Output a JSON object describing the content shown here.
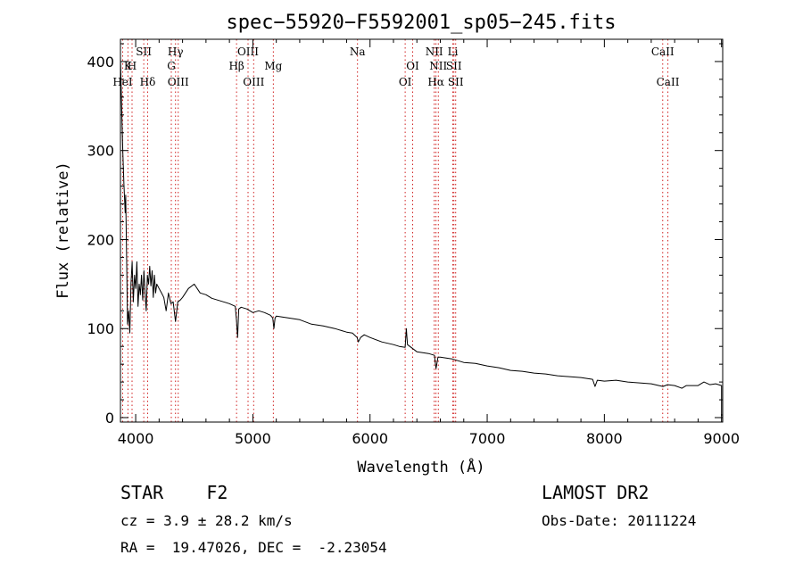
{
  "chart_data": {
    "type": "line",
    "title": "spec−55920−F5592001_sp05−245.fits",
    "xlabel": "Wavelength (Å)",
    "ylabel": "Flux (relative)",
    "xlim": [
      3870,
      9010
    ],
    "ylim": [
      -5,
      425
    ],
    "xticks": [
      4000,
      5000,
      6000,
      7000,
      8000,
      9000
    ],
    "yticks": [
      0,
      100,
      200,
      300,
      400
    ],
    "grid": false,
    "series": [
      {
        "color": "#000000",
        "points": [
          [
            3870,
            405
          ],
          [
            3880,
            350
          ],
          [
            3890,
            300
          ],
          [
            3900,
            262
          ],
          [
            3910,
            230
          ],
          [
            3915,
            250
          ],
          [
            3920,
            200
          ],
          [
            3925,
            160
          ],
          [
            3930,
            105
          ],
          [
            3940,
            120
          ],
          [
            3950,
            95
          ],
          [
            3960,
            150
          ],
          [
            3970,
            175
          ],
          [
            3980,
            130
          ],
          [
            3990,
            160
          ],
          [
            4000,
            145
          ],
          [
            4010,
            175
          ],
          [
            4020,
            125
          ],
          [
            4030,
            150
          ],
          [
            4040,
            138
          ],
          [
            4050,
            160
          ],
          [
            4060,
            132
          ],
          [
            4070,
            165
          ],
          [
            4080,
            140
          ],
          [
            4090,
            120
          ],
          [
            4100,
            160
          ],
          [
            4110,
            150
          ],
          [
            4120,
            170
          ],
          [
            4130,
            148
          ],
          [
            4140,
            165
          ],
          [
            4150,
            135
          ],
          [
            4160,
            160
          ],
          [
            4170,
            140
          ],
          [
            4180,
            150
          ],
          [
            4200,
            145
          ],
          [
            4220,
            140
          ],
          [
            4240,
            135
          ],
          [
            4260,
            120
          ],
          [
            4280,
            140
          ],
          [
            4300,
            128
          ],
          [
            4320,
            130
          ],
          [
            4340,
            108
          ],
          [
            4360,
            130
          ],
          [
            4380,
            132
          ],
          [
            4400,
            135
          ],
          [
            4450,
            145
          ],
          [
            4500,
            150
          ],
          [
            4550,
            140
          ],
          [
            4600,
            138
          ],
          [
            4650,
            134
          ],
          [
            4700,
            132
          ],
          [
            4750,
            130
          ],
          [
            4800,
            128
          ],
          [
            4850,
            125
          ],
          [
            4860,
            110
          ],
          [
            4870,
            90
          ],
          [
            4880,
            122
          ],
          [
            4900,
            124
          ],
          [
            4950,
            122
          ],
          [
            5000,
            118
          ],
          [
            5050,
            120
          ],
          [
            5100,
            118
          ],
          [
            5150,
            115
          ],
          [
            5170,
            112
          ],
          [
            5180,
            100
          ],
          [
            5190,
            112
          ],
          [
            5200,
            114
          ],
          [
            5300,
            112
          ],
          [
            5400,
            110
          ],
          [
            5500,
            105
          ],
          [
            5600,
            103
          ],
          [
            5700,
            100
          ],
          [
            5800,
            96
          ],
          [
            5850,
            95
          ],
          [
            5890,
            90
          ],
          [
            5900,
            85
          ],
          [
            5920,
            90
          ],
          [
            5950,
            93
          ],
          [
            6000,
            90
          ],
          [
            6100,
            85
          ],
          [
            6200,
            82
          ],
          [
            6250,
            80
          ],
          [
            6300,
            79
          ],
          [
            6310,
            100
          ],
          [
            6320,
            82
          ],
          [
            6400,
            74
          ],
          [
            6500,
            72
          ],
          [
            6550,
            70
          ],
          [
            6563,
            55
          ],
          [
            6580,
            68
          ],
          [
            6600,
            68
          ],
          [
            6700,
            66
          ],
          [
            6800,
            62
          ],
          [
            6900,
            61
          ],
          [
            7000,
            58
          ],
          [
            7100,
            56
          ],
          [
            7200,
            53
          ],
          [
            7300,
            52
          ],
          [
            7400,
            50
          ],
          [
            7500,
            49
          ],
          [
            7600,
            47
          ],
          [
            7700,
            46
          ],
          [
            7800,
            45
          ],
          [
            7900,
            43
          ],
          [
            7920,
            35
          ],
          [
            7940,
            42
          ],
          [
            8000,
            41
          ],
          [
            8100,
            42
          ],
          [
            8200,
            40
          ],
          [
            8300,
            39
          ],
          [
            8400,
            38
          ],
          [
            8500,
            35
          ],
          [
            8540,
            37
          ],
          [
            8600,
            36
          ],
          [
            8662,
            33
          ],
          [
            8700,
            36
          ],
          [
            8800,
            36
          ],
          [
            8850,
            40
          ],
          [
            8900,
            37
          ],
          [
            8950,
            38
          ],
          [
            9000,
            36
          ],
          [
            9000,
            2
          ]
        ]
      }
    ],
    "lines": [
      {
        "wl": 3889,
        "top": "",
        "mid": "",
        "bot": "HeI"
      },
      {
        "wl": 3934,
        "top": "",
        "mid": "K",
        "bot": ""
      },
      {
        "wl": 3969,
        "top": "",
        "mid": "H",
        "bot": ""
      },
      {
        "wl": 4069,
        "top": "SII",
        "mid": "",
        "bot": ""
      },
      {
        "wl": 4102,
        "top": "",
        "mid": "",
        "bot": "Hδ"
      },
      {
        "wl": 4304,
        "top": "",
        "mid": "G",
        "bot": ""
      },
      {
        "wl": 4340,
        "top": "Hγ",
        "mid": "",
        "bot": ""
      },
      {
        "wl": 4363,
        "top": "",
        "mid": "",
        "bot": "OIII"
      },
      {
        "wl": 4861,
        "top": "",
        "mid": "Hβ",
        "bot": ""
      },
      {
        "wl": 4959,
        "top": "OIII",
        "mid": "",
        "bot": ""
      },
      {
        "wl": 5007,
        "top": "",
        "mid": "",
        "bot": "OIII"
      },
      {
        "wl": 5175,
        "top": "",
        "mid": "Mg",
        "bot": ""
      },
      {
        "wl": 5893,
        "top": "Na",
        "mid": "",
        "bot": ""
      },
      {
        "wl": 6300,
        "top": "",
        "mid": "",
        "bot": "OI"
      },
      {
        "wl": 6364,
        "top": "",
        "mid": "OI",
        "bot": ""
      },
      {
        "wl": 6548,
        "top": "NII",
        "mid": "",
        "bot": ""
      },
      {
        "wl": 6563,
        "top": "",
        "mid": "",
        "bot": "Hα"
      },
      {
        "wl": 6583,
        "top": "",
        "mid": "NII",
        "bot": ""
      },
      {
        "wl": 6707,
        "top": "Li",
        "mid": "",
        "bot": ""
      },
      {
        "wl": 6716,
        "top": "",
        "mid": "SII",
        "bot": ""
      },
      {
        "wl": 6731,
        "top": "",
        "mid": "",
        "bot": "SII"
      },
      {
        "wl": 8498,
        "top": "CaII",
        "mid": "",
        "bot": ""
      },
      {
        "wl": 8542,
        "top": "",
        "mid": "",
        "bot": "CaII"
      }
    ]
  },
  "footer": {
    "object": "STAR    F2",
    "survey": "LAMOST DR2",
    "cz": "cz = 3.9 ± 28.2 km/s",
    "obs_date": "Obs-Date: 20111224",
    "radec": "RA =  19.47026, DEC =  -2.23054"
  }
}
